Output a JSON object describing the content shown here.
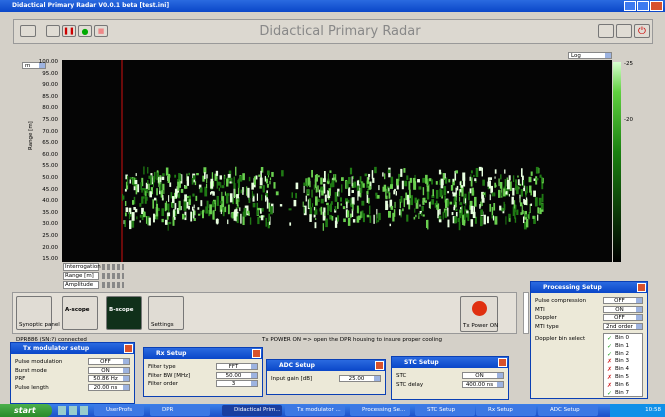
{
  "window_title": "Didactical Primary Radar V0.0.1 beta [test.ini]",
  "app_title": "Didactical Primary Radar",
  "plot": {
    "unit": "m",
    "scale": "Log",
    "y_label": "Range [m]",
    "y_ticks": [
      "100.00",
      "95.00",
      "90.00",
      "85.00",
      "80.00",
      "75.00",
      "70.00",
      "65.00",
      "60.00",
      "55.00",
      "50.00",
      "45.00",
      "40.00",
      "35.00",
      "30.00",
      "25.00",
      "20.00",
      "15.00"
    ],
    "colorbar_ticks": [
      "-25",
      "-20"
    ],
    "cursor_rows": [
      "Interrogation",
      "Range [m]",
      "Amplitude"
    ]
  },
  "tools": [
    "Synoptic panel",
    "A-scope",
    "B-scope",
    "Settings"
  ],
  "tx_power": "Tx Power ON",
  "status": {
    "connection": "DPR886 (SN:?) connected",
    "message": "Tx POWER ON => open the DPR housing to insure proper cooling"
  },
  "windows": [
    {
      "title": "Tx modulator setup",
      "rows": [
        [
          "Pulse modulation",
          "OFF"
        ],
        [
          "Burst mode",
          "ON"
        ],
        [
          "PRF",
          "50.86 Hz"
        ],
        [
          "Pulse length",
          "20.00 ns"
        ]
      ]
    },
    {
      "title": "Rx Setup",
      "rows": [
        [
          "Filter type",
          "FFT"
        ],
        [
          "Filter BW [MHz]",
          "50.00"
        ],
        [
          "Filter order",
          "3"
        ]
      ]
    },
    {
      "title": "ADC Setup",
      "rows": [
        [
          "Input gain [dB]",
          "25.00"
        ]
      ]
    },
    {
      "title": "STC Setup",
      "rows": [
        [
          "STC",
          "ON"
        ],
        [
          "STC delay",
          "400.00 ns"
        ]
      ]
    }
  ],
  "processing": {
    "title": "Processing Setup",
    "rows": [
      [
        "Pulse compression",
        "OFF"
      ],
      [
        "MTI",
        "ON"
      ],
      [
        "Doppler",
        "OFF"
      ],
      [
        "MTI type",
        "2nd order"
      ]
    ],
    "bin_label": "Doppler bin select",
    "bins": [
      {
        "name": "Bin 0",
        "on": true
      },
      {
        "name": "Bin 1",
        "on": true
      },
      {
        "name": "Bin 2",
        "on": true
      },
      {
        "name": "Bin 3",
        "on": false
      },
      {
        "name": "Bin 4",
        "on": false
      },
      {
        "name": "Bin 5",
        "on": false
      },
      {
        "name": "Bin 6",
        "on": false
      },
      {
        "name": "Bin 7",
        "on": true
      }
    ]
  },
  "taskbar": {
    "start": "start",
    "items": [
      "UserProfs",
      "DPR",
      "Didactical Prim...",
      "Tx modulator ...",
      "Processing Se...",
      "STC Setup",
      "Rx Setup",
      "ADC Setup"
    ],
    "clock": "10:58"
  }
}
